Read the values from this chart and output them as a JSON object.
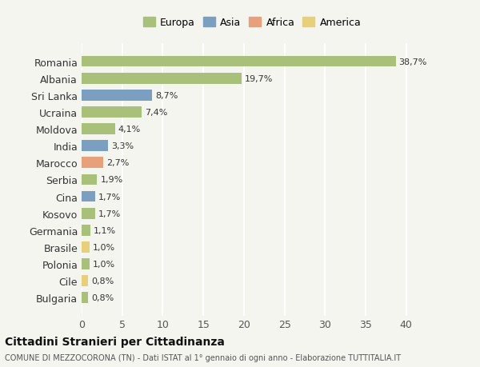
{
  "countries": [
    "Romania",
    "Albania",
    "Sri Lanka",
    "Ucraina",
    "Moldova",
    "India",
    "Marocco",
    "Serbia",
    "Cina",
    "Kosovo",
    "Germania",
    "Brasile",
    "Polonia",
    "Cile",
    "Bulgaria"
  ],
  "values": [
    38.7,
    19.7,
    8.7,
    7.4,
    4.1,
    3.3,
    2.7,
    1.9,
    1.7,
    1.7,
    1.1,
    1.0,
    1.0,
    0.8,
    0.8
  ],
  "labels": [
    "38,7%",
    "19,7%",
    "8,7%",
    "7,4%",
    "4,1%",
    "3,3%",
    "2,7%",
    "1,9%",
    "1,7%",
    "1,7%",
    "1,1%",
    "1,0%",
    "1,0%",
    "0,8%",
    "0,8%"
  ],
  "continents": [
    "Europa",
    "Europa",
    "Asia",
    "Europa",
    "Europa",
    "Asia",
    "Africa",
    "Europa",
    "Asia",
    "Europa",
    "Europa",
    "America",
    "Europa",
    "America",
    "Europa"
  ],
  "colors": {
    "Europa": "#a8c07a",
    "Asia": "#7a9fc0",
    "Africa": "#e8a07a",
    "America": "#e8d07a"
  },
  "legend_order": [
    "Europa",
    "Asia",
    "Africa",
    "America"
  ],
  "xlim": [
    0,
    42
  ],
  "xticks": [
    0,
    5,
    10,
    15,
    20,
    25,
    30,
    35,
    40
  ],
  "title": "Cittadini Stranieri per Cittadinanza",
  "subtitle": "COMUNE DI MEZZOCORONA (TN) - Dati ISTAT al 1° gennaio di ogni anno - Elaborazione TUTTITALIA.IT",
  "background_color": "#f5f5f0",
  "grid_color": "#ffffff",
  "bar_height": 0.65
}
